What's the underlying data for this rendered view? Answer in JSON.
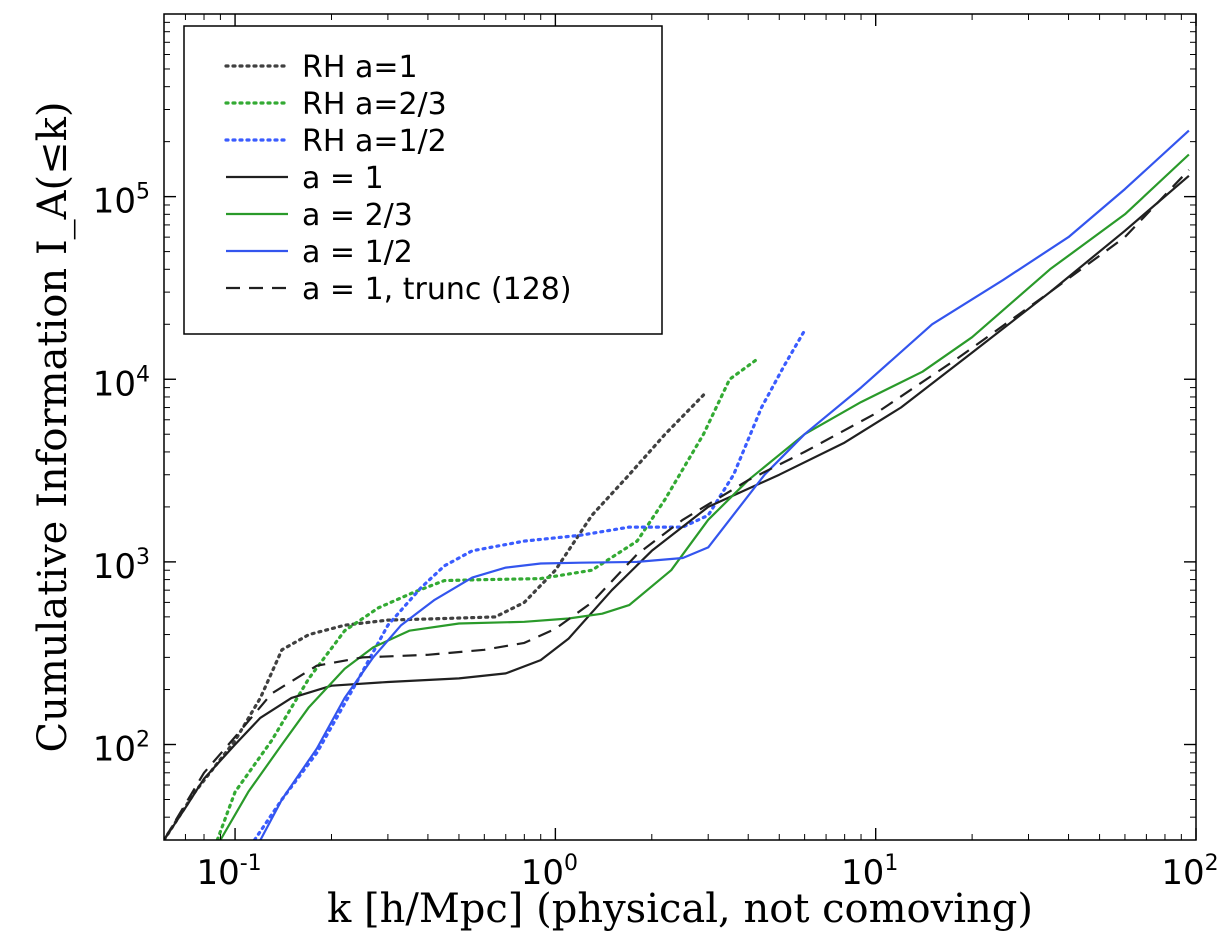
{
  "chart_data": {
    "type": "line",
    "title": "",
    "xlabel": "k [h/Mpc] (physical, not comoving)",
    "ylabel": "Cumulative Information I_A(≤k)",
    "xscale": "log",
    "yscale": "log",
    "xlim": [
      0.06,
      100
    ],
    "ylim": [
      30,
      1000000
    ],
    "grid": false,
    "legend_position": "top-left",
    "x_ticks": [
      {
        "value": 0.1,
        "base": "10",
        "exp": "-1"
      },
      {
        "value": 1,
        "base": "10",
        "exp": "0"
      },
      {
        "value": 10,
        "base": "10",
        "exp": "1"
      },
      {
        "value": 100,
        "base": "10",
        "exp": "2"
      }
    ],
    "y_ticks": [
      {
        "value": 100,
        "base": "10",
        "exp": "2"
      },
      {
        "value": 1000,
        "base": "10",
        "exp": "3"
      },
      {
        "value": 10000,
        "base": "10",
        "exp": "4"
      },
      {
        "value": 100000,
        "base": "10",
        "exp": "5"
      }
    ],
    "series": [
      {
        "name": "RH a=1",
        "color": "#404040",
        "style": "dotted",
        "points": [
          [
            0.06,
            30
          ],
          [
            0.075,
            55
          ],
          [
            0.1,
            105
          ],
          [
            0.12,
            180
          ],
          [
            0.14,
            330
          ],
          [
            0.17,
            400
          ],
          [
            0.22,
            450
          ],
          [
            0.3,
            480
          ],
          [
            0.45,
            490
          ],
          [
            0.65,
            500
          ],
          [
            0.8,
            600
          ],
          [
            1.0,
            900
          ],
          [
            1.3,
            1800
          ],
          [
            1.7,
            3000
          ],
          [
            2.2,
            5000
          ],
          [
            2.9,
            8200
          ]
        ]
      },
      {
        "name": "RH a=2/3",
        "color": "#33aa33",
        "style": "dotted",
        "points": [
          [
            0.088,
            30
          ],
          [
            0.1,
            55
          ],
          [
            0.13,
            105
          ],
          [
            0.17,
            230
          ],
          [
            0.22,
            420
          ],
          [
            0.28,
            560
          ],
          [
            0.36,
            680
          ],
          [
            0.45,
            790
          ],
          [
            0.6,
            800
          ],
          [
            0.9,
            810
          ],
          [
            1.3,
            900
          ],
          [
            1.8,
            1300
          ],
          [
            2.2,
            2200
          ],
          [
            2.9,
            5000
          ],
          [
            3.5,
            10000
          ],
          [
            4.3,
            13000
          ]
        ]
      },
      {
        "name": "RH a=1/2",
        "color": "#3a5cff",
        "style": "dotted",
        "points": [
          [
            0.115,
            30
          ],
          [
            0.14,
            50
          ],
          [
            0.18,
            90
          ],
          [
            0.24,
            220
          ],
          [
            0.3,
            450
          ],
          [
            0.38,
            720
          ],
          [
            0.45,
            950
          ],
          [
            0.55,
            1150
          ],
          [
            0.8,
            1300
          ],
          [
            1.2,
            1400
          ],
          [
            1.7,
            1550
          ],
          [
            2.5,
            1550
          ],
          [
            3.0,
            1800
          ],
          [
            3.6,
            3000
          ],
          [
            4.4,
            7000
          ],
          [
            5.2,
            12000
          ],
          [
            6.0,
            18500
          ]
        ]
      },
      {
        "name": "a = 1",
        "color": "#202020",
        "style": "solid",
        "points": [
          [
            0.06,
            30
          ],
          [
            0.07,
            45
          ],
          [
            0.08,
            65
          ],
          [
            0.1,
            100
          ],
          [
            0.12,
            140
          ],
          [
            0.15,
            180
          ],
          [
            0.2,
            210
          ],
          [
            0.3,
            220
          ],
          [
            0.5,
            230
          ],
          [
            0.7,
            245
          ],
          [
            0.9,
            290
          ],
          [
            1.1,
            380
          ],
          [
            1.5,
            700
          ],
          [
            2.0,
            1150
          ],
          [
            3.0,
            2000
          ],
          [
            5.0,
            3000
          ],
          [
            8.0,
            4500
          ],
          [
            12,
            7000
          ],
          [
            20,
            14000
          ],
          [
            35,
            30000
          ],
          [
            60,
            65000
          ],
          [
            95,
            130000
          ]
        ]
      },
      {
        "name": "a = 2/3",
        "color": "#2a9a2a",
        "style": "solid",
        "points": [
          [
            0.09,
            30
          ],
          [
            0.11,
            55
          ],
          [
            0.14,
            100
          ],
          [
            0.17,
            160
          ],
          [
            0.22,
            260
          ],
          [
            0.27,
            340
          ],
          [
            0.35,
            420
          ],
          [
            0.5,
            460
          ],
          [
            0.8,
            470
          ],
          [
            1.1,
            490
          ],
          [
            1.4,
            520
          ],
          [
            1.7,
            580
          ],
          [
            2.3,
            900
          ],
          [
            3.0,
            1700
          ],
          [
            4.0,
            2800
          ],
          [
            6.0,
            5000
          ],
          [
            9.0,
            7500
          ],
          [
            14,
            11000
          ],
          [
            20,
            17000
          ],
          [
            35,
            40000
          ],
          [
            60,
            80000
          ],
          [
            95,
            170000
          ]
        ]
      },
      {
        "name": "a = 1/2",
        "color": "#3355ee",
        "style": "solid",
        "points": [
          [
            0.12,
            30
          ],
          [
            0.14,
            50
          ],
          [
            0.18,
            95
          ],
          [
            0.22,
            180
          ],
          [
            0.27,
            300
          ],
          [
            0.33,
            450
          ],
          [
            0.42,
            620
          ],
          [
            0.55,
            820
          ],
          [
            0.7,
            930
          ],
          [
            0.9,
            980
          ],
          [
            1.2,
            990
          ],
          [
            1.8,
            1000
          ],
          [
            2.5,
            1050
          ],
          [
            3.0,
            1200
          ],
          [
            3.5,
            1700
          ],
          [
            4.5,
            3000
          ],
          [
            6.0,
            5000
          ],
          [
            9.0,
            9000
          ],
          [
            15,
            20000
          ],
          [
            25,
            35000
          ],
          [
            40,
            60000
          ],
          [
            60,
            110000
          ],
          [
            95,
            230000
          ]
        ]
      },
      {
        "name": "a = 1, trunc (128)",
        "color": "#202020",
        "style": "dashed",
        "points": [
          [
            0.06,
            30
          ],
          [
            0.08,
            70
          ],
          [
            0.1,
            110
          ],
          [
            0.13,
            190
          ],
          [
            0.18,
            270
          ],
          [
            0.25,
            300
          ],
          [
            0.4,
            310
          ],
          [
            0.6,
            330
          ],
          [
            0.8,
            360
          ],
          [
            1.0,
            430
          ],
          [
            1.3,
            600
          ],
          [
            1.8,
            1100
          ],
          [
            2.5,
            1700
          ],
          [
            4.0,
            2800
          ],
          [
            6.0,
            4000
          ],
          [
            10,
            6500
          ],
          [
            18,
            13000
          ],
          [
            35,
            30000
          ],
          [
            60,
            60000
          ],
          [
            95,
            140000
          ]
        ]
      }
    ]
  }
}
